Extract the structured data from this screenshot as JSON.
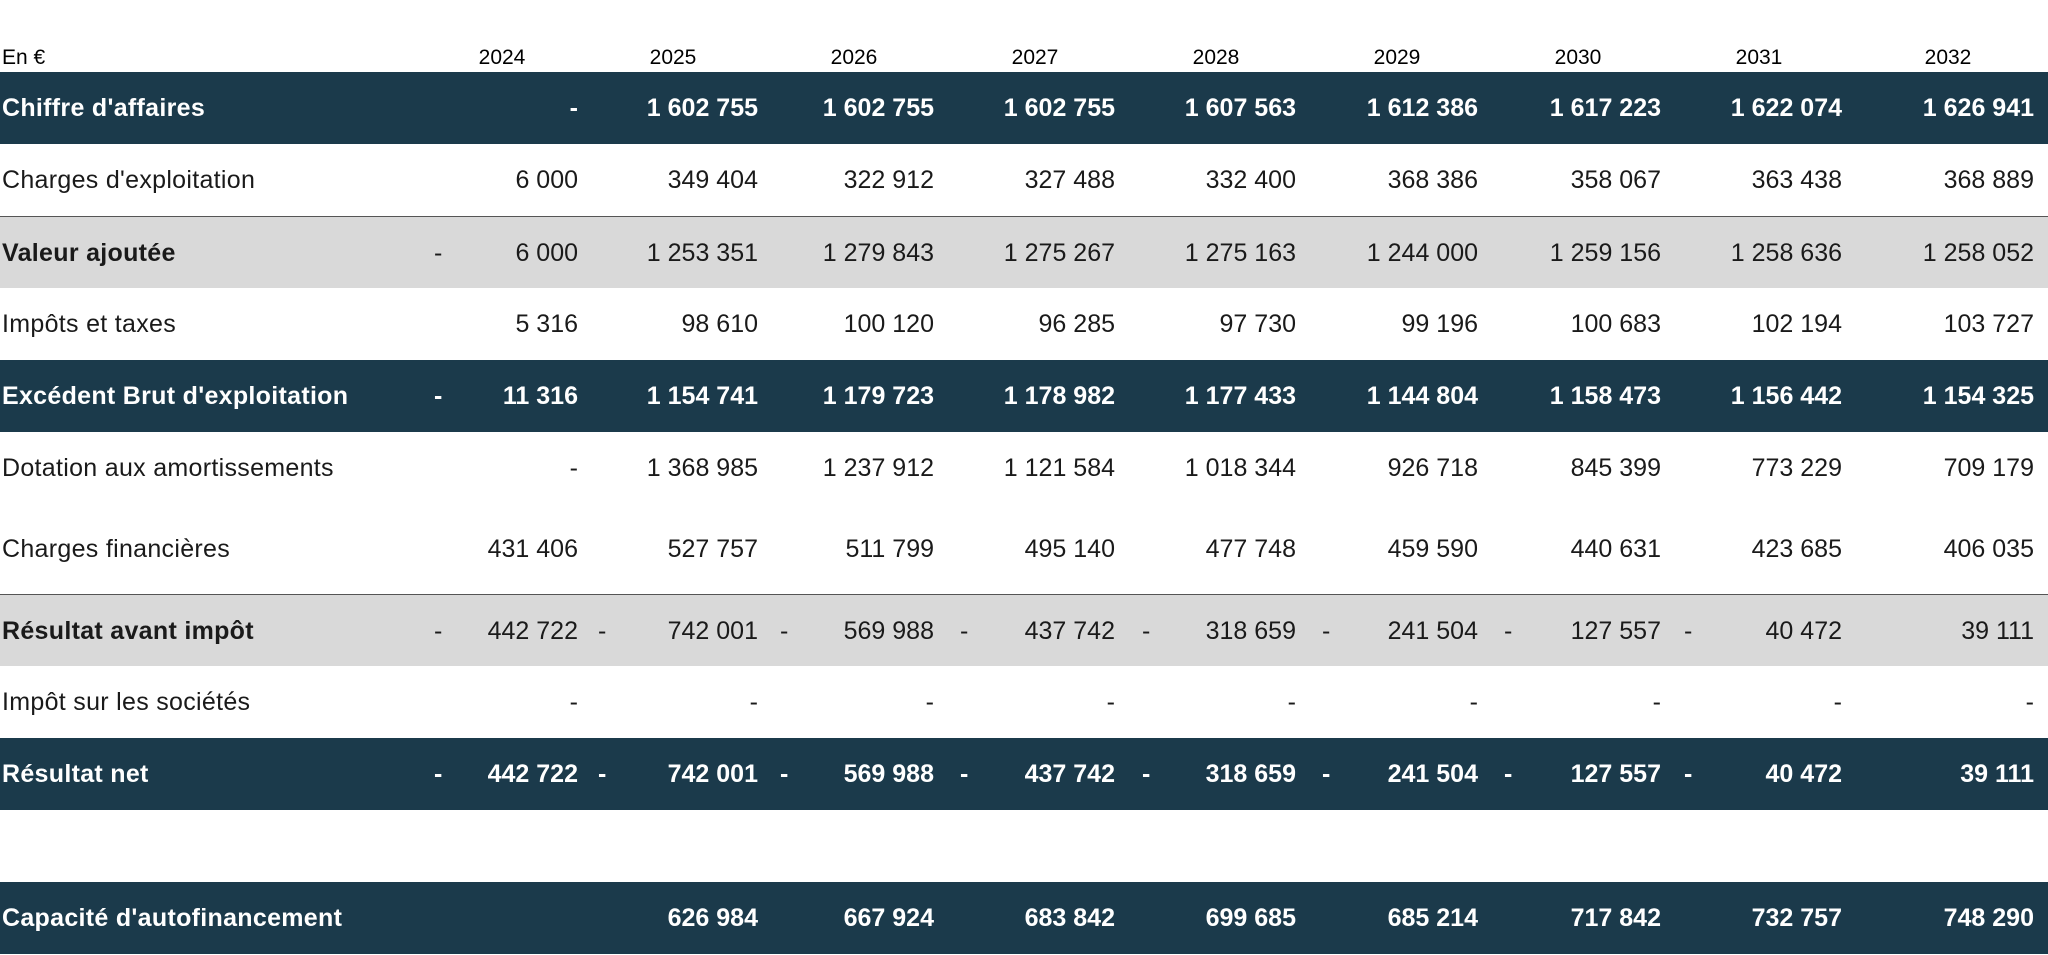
{
  "header": {
    "unit": "En €",
    "years": [
      "2024",
      "2025",
      "2026",
      "2027",
      "2028",
      "2029",
      "2030",
      "2031",
      "2032"
    ]
  },
  "rows": [
    {
      "label": "Chiffre d'affaires",
      "style": "dark",
      "values": [
        "-",
        "1 602 755",
        "1 602 755",
        "1 602 755",
        "1 607 563",
        "1 612 386",
        "1 617 223",
        "1 622 074",
        "1 626 941"
      ],
      "neg": [
        false,
        false,
        false,
        false,
        false,
        false,
        false,
        false,
        false
      ],
      "neg_label": false
    },
    {
      "label": "Charges d'exploitation",
      "style": "plain",
      "values": [
        "6 000",
        "349 404",
        "322 912",
        "327 488",
        "332 400",
        "368 386",
        "358 067",
        "363 438",
        "368 889"
      ],
      "neg": [
        false,
        false,
        false,
        false,
        false,
        false,
        false,
        false,
        false
      ],
      "neg_label": false
    },
    {
      "label": "Valeur ajoutée",
      "style": "grey",
      "values": [
        "6 000",
        "1 253 351",
        "1 279 843",
        "1 275 267",
        "1 275 163",
        "1 244 000",
        "1 259 156",
        "1 258 636",
        "1 258 052"
      ],
      "neg": [
        true,
        false,
        false,
        false,
        false,
        false,
        false,
        false,
        false
      ],
      "neg_label": false
    },
    {
      "label": "Impôts et taxes",
      "style": "plain",
      "values": [
        "5 316",
        "98 610",
        "100 120",
        "96 285",
        "97 730",
        "99 196",
        "100 683",
        "102 194",
        "103 727"
      ],
      "neg": [
        false,
        false,
        false,
        false,
        false,
        false,
        false,
        false,
        false
      ],
      "neg_label": false
    },
    {
      "label": "Excédent Brut d'exploitation",
      "style": "dark",
      "values": [
        "11 316",
        "1 154 741",
        "1 179 723",
        "1 178 982",
        "1 177 433",
        "1 144 804",
        "1 158 473",
        "1 156 442",
        "1 154 325"
      ],
      "neg": [
        true,
        false,
        false,
        false,
        false,
        false,
        false,
        false,
        false
      ],
      "neg_label": false
    },
    {
      "label": "Dotation aux amortissements",
      "style": "plain",
      "values": [
        "-",
        "1 368 985",
        "1 237 912",
        "1 121 584",
        "1 018 344",
        "926 718",
        "845 399",
        "773 229",
        "709 179"
      ],
      "neg": [
        false,
        false,
        false,
        false,
        false,
        false,
        false,
        false,
        false
      ],
      "neg_label": false
    },
    {
      "label": "Charges financières",
      "style": "plain",
      "values": [
        "431 406",
        "527 757",
        "511 799",
        "495 140",
        "477 748",
        "459 590",
        "440 631",
        "423 685",
        "406 035"
      ],
      "neg": [
        false,
        false,
        false,
        false,
        false,
        false,
        false,
        false,
        false
      ],
      "neg_label": false
    },
    {
      "label": "Résultat avant impôt",
      "style": "grey",
      "values": [
        "442 722",
        "742 001",
        "569 988",
        "437 742",
        "318 659",
        "241 504",
        "127 557",
        "40 472",
        "39 111"
      ],
      "neg": [
        true,
        true,
        true,
        true,
        true,
        true,
        true,
        true,
        false
      ],
      "neg_label": false
    },
    {
      "label": "Impôt sur les sociétés",
      "style": "plain",
      "values": [
        "-",
        "-",
        "-",
        "-",
        "-",
        "-",
        "-",
        "-",
        "-"
      ],
      "neg": [
        false,
        false,
        false,
        false,
        false,
        false,
        false,
        false,
        false
      ],
      "neg_label": false
    },
    {
      "label": "Résultat net",
      "style": "dark",
      "values": [
        "442 722",
        "742 001",
        "569 988",
        "437 742",
        "318 659",
        "241 504",
        "127 557",
        "40 472",
        "39 111"
      ],
      "neg": [
        true,
        true,
        true,
        true,
        true,
        true,
        true,
        true,
        false
      ],
      "neg_label": false
    },
    {
      "label": "Capacité d'autofinancement",
      "style": "dark",
      "values": [
        "",
        "626 984",
        "667 924",
        "683 842",
        "699 685",
        "685 214",
        "717 842",
        "732 757",
        "748 290"
      ],
      "neg": [
        false,
        false,
        false,
        false,
        false,
        false,
        false,
        false,
        false
      ],
      "neg_label": false
    }
  ],
  "minus_sign": "-",
  "colors": {
    "dark_band": "#1b3a4b",
    "grey_band": "#d9d9d9"
  }
}
